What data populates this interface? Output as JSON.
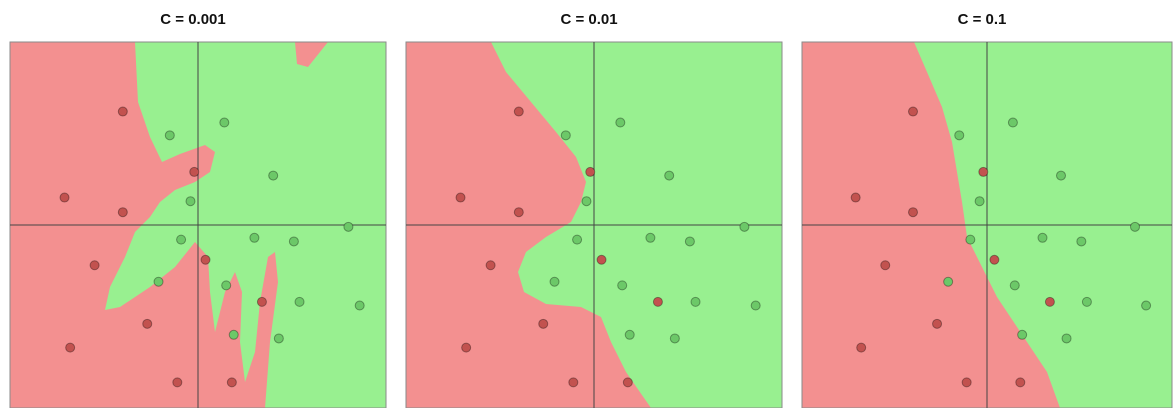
{
  "chart_data": [
    {
      "type": "scatter",
      "title": "C = 0.001",
      "xlim": [
        -1,
        1
      ],
      "ylim": [
        -1,
        1
      ],
      "series": [
        {
          "color": "#c2524f",
          "x": [
            -0.4,
            -0.71,
            -0.4,
            -0.02,
            -0.55,
            0.04,
            -0.27,
            0.34,
            -0.68,
            -0.11,
            0.18
          ],
          "y": [
            0.62,
            0.15,
            0.07,
            0.29,
            -0.22,
            -0.19,
            -0.54,
            -0.42,
            -0.67,
            -0.86,
            -0.86
          ]
        },
        {
          "color": "#6cc868",
          "x": [
            -0.15,
            0.14,
            0.4,
            -0.04,
            -0.09,
            0.3,
            0.51,
            0.8,
            -0.21,
            0.15,
            0.54,
            0.86,
            0.19,
            0.43
          ],
          "y": [
            0.49,
            0.56,
            0.27,
            0.13,
            -0.08,
            -0.07,
            -0.09,
            -0.01,
            -0.31,
            -0.33,
            -0.42,
            -0.44,
            -0.6,
            -0.62
          ]
        }
      ]
    },
    {
      "type": "scatter",
      "title": "C = 0.01",
      "xlim": [
        -1,
        1
      ],
      "ylim": [
        -1,
        1
      ],
      "series": [
        {
          "color": "#c2524f",
          "x": [
            -0.4,
            -0.71,
            -0.4,
            -0.02,
            -0.55,
            0.04,
            -0.27,
            0.34,
            -0.68,
            -0.11,
            0.18
          ],
          "y": [
            0.62,
            0.15,
            0.07,
            0.29,
            -0.22,
            -0.19,
            -0.54,
            -0.42,
            -0.67,
            -0.86,
            -0.86
          ]
        },
        {
          "color": "#6cc868",
          "x": [
            -0.15,
            0.14,
            0.4,
            -0.04,
            -0.09,
            0.3,
            0.51,
            0.8,
            -0.21,
            0.15,
            0.54,
            0.86,
            0.19,
            0.43
          ],
          "y": [
            0.49,
            0.56,
            0.27,
            0.13,
            -0.08,
            -0.07,
            -0.09,
            -0.01,
            -0.31,
            -0.33,
            -0.42,
            -0.44,
            -0.6,
            -0.62
          ]
        }
      ]
    },
    {
      "type": "scatter",
      "title": "C = 0.1",
      "xlim": [
        -1,
        1
      ],
      "ylim": [
        -1,
        1
      ],
      "series": [
        {
          "color": "#c2524f",
          "x": [
            -0.4,
            -0.71,
            -0.4,
            -0.02,
            -0.55,
            0.04,
            -0.27,
            0.34,
            -0.68,
            -0.11,
            0.18
          ],
          "y": [
            0.62,
            0.15,
            0.07,
            0.29,
            -0.22,
            -0.19,
            -0.54,
            -0.42,
            -0.67,
            -0.86,
            -0.86
          ]
        },
        {
          "color": "#6cc868",
          "x": [
            -0.15,
            0.14,
            0.4,
            -0.04,
            -0.09,
            0.3,
            0.51,
            0.8,
            -0.21,
            0.15,
            0.54,
            0.86,
            0.19,
            0.43
          ],
          "y": [
            0.49,
            0.56,
            0.27,
            0.13,
            -0.08,
            -0.07,
            -0.09,
            -0.01,
            -0.31,
            -0.33,
            -0.42,
            -0.44,
            -0.6,
            -0.62
          ]
        }
      ]
    }
  ]
}
